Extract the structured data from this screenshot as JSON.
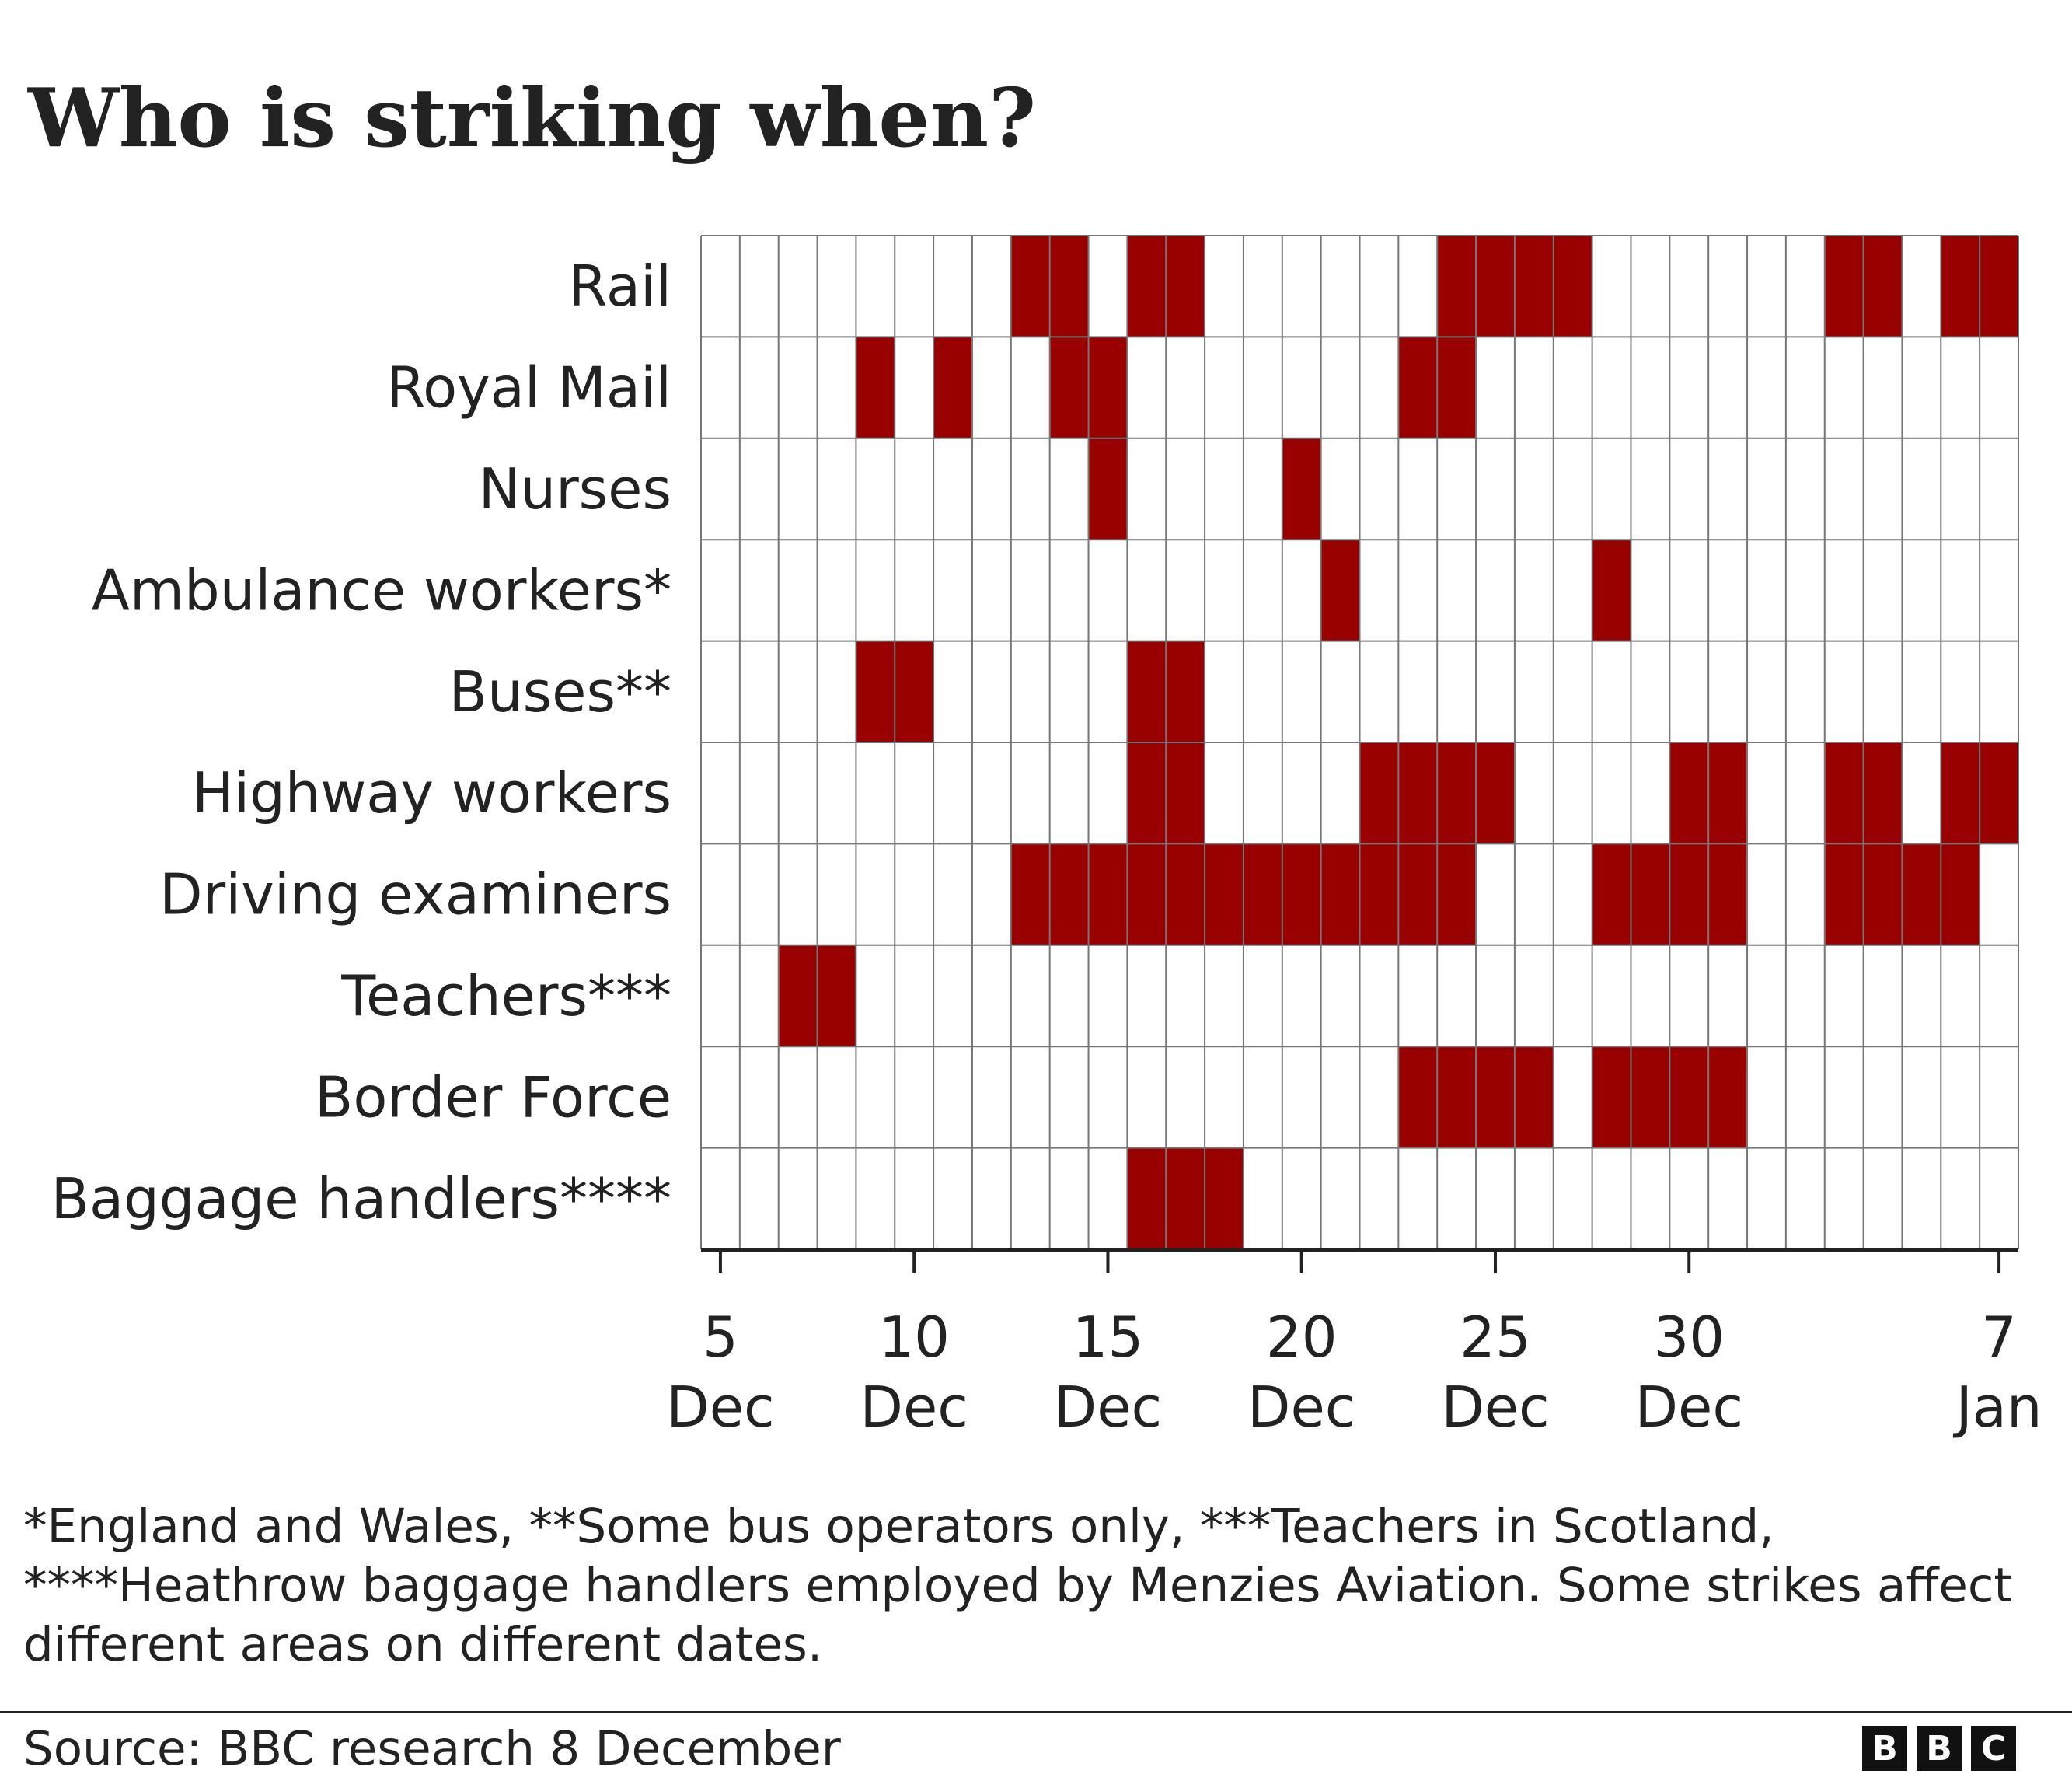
{
  "title": "Who is striking when?",
  "chart_data": {
    "type": "heatmap",
    "title": "Who is striking when?",
    "x": [
      "5 Dec",
      "6 Dec",
      "7 Dec",
      "8 Dec",
      "9 Dec",
      "10 Dec",
      "11 Dec",
      "12 Dec",
      "13 Dec",
      "14 Dec",
      "15 Dec",
      "16 Dec",
      "17 Dec",
      "18 Dec",
      "19 Dec",
      "20 Dec",
      "21 Dec",
      "22 Dec",
      "23 Dec",
      "24 Dec",
      "25 Dec",
      "26 Dec",
      "27 Dec",
      "28 Dec",
      "29 Dec",
      "30 Dec",
      "31 Dec",
      "1 Jan",
      "2 Jan",
      "3 Jan",
      "4 Jan",
      "5 Jan",
      "6 Jan",
      "7 Jan"
    ],
    "x_ticks": [
      {
        "day": "5",
        "month": "Dec"
      },
      {
        "day": "10",
        "month": "Dec"
      },
      {
        "day": "15",
        "month": "Dec"
      },
      {
        "day": "20",
        "month": "Dec"
      },
      {
        "day": "25",
        "month": "Dec"
      },
      {
        "day": "30",
        "month": "Dec"
      },
      {
        "day": "7",
        "month": "Jan"
      }
    ],
    "rows": [
      {
        "name": "Rail",
        "strike_days": [
          "13 Dec",
          "14 Dec",
          "16 Dec",
          "17 Dec",
          "24 Dec",
          "25 Dec",
          "26 Dec",
          "27 Dec",
          "3 Jan",
          "4 Jan",
          "6 Jan",
          "7 Jan"
        ]
      },
      {
        "name": "Royal Mail",
        "strike_days": [
          "9 Dec",
          "11 Dec",
          "14 Dec",
          "15 Dec",
          "23 Dec",
          "24 Dec"
        ]
      },
      {
        "name": "Nurses",
        "strike_days": [
          "15 Dec",
          "20 Dec"
        ]
      },
      {
        "name": "Ambulance workers*",
        "strike_days": [
          "21 Dec",
          "28 Dec"
        ]
      },
      {
        "name": "Buses**",
        "strike_days": [
          "9 Dec",
          "10 Dec",
          "16 Dec",
          "17 Dec"
        ]
      },
      {
        "name": "Highway workers",
        "strike_days": [
          "16 Dec",
          "17 Dec",
          "22 Dec",
          "23 Dec",
          "24 Dec",
          "25 Dec",
          "30 Dec",
          "31 Dec",
          "3 Jan",
          "4 Jan",
          "6 Jan",
          "7 Jan"
        ]
      },
      {
        "name": "Driving examiners",
        "strike_days": [
          "13 Dec",
          "14 Dec",
          "15 Dec",
          "16 Dec",
          "17 Dec",
          "18 Dec",
          "19 Dec",
          "20 Dec",
          "21 Dec",
          "22 Dec",
          "23 Dec",
          "24 Dec",
          "28 Dec",
          "29 Dec",
          "30 Dec",
          "31 Dec",
          "3 Jan",
          "4 Jan",
          "5 Jan",
          "6 Jan"
        ]
      },
      {
        "name": "Teachers***",
        "strike_days": [
          "7 Dec",
          "8 Dec"
        ]
      },
      {
        "name": "Border Force",
        "strike_days": [
          "23 Dec",
          "24 Dec",
          "25 Dec",
          "26 Dec",
          "28 Dec",
          "29 Dec",
          "30 Dec",
          "31 Dec"
        ]
      },
      {
        "name": "Baggage handlers****",
        "strike_days": [
          "16 Dec",
          "17 Dec",
          "18 Dec"
        ]
      }
    ],
    "strike_color": "#990000",
    "grid_color": "#777777"
  },
  "footnote": "*England and Wales, **Some bus operators only, ***Teachers in Scotland, ****Heathrow baggage handlers employed by Menzies Aviation. Some strikes affect different areas on different dates.",
  "source": "Source: BBC research 8 December",
  "logo": {
    "letters": [
      "B",
      "B",
      "C"
    ]
  }
}
